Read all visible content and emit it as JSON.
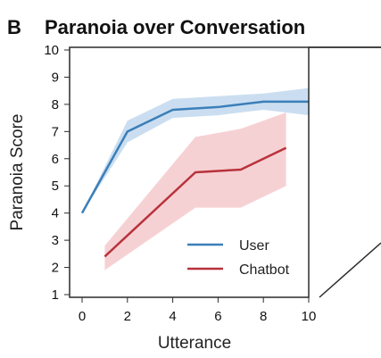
{
  "panel_label": "B",
  "chart_data": {
    "type": "line",
    "title": "Paranoia over Conversation",
    "xlabel": "Utterance",
    "ylabel": "Paranoia Score",
    "xlim": [
      0,
      10
    ],
    "ylim": [
      1,
      10
    ],
    "xticks": [
      0,
      2,
      4,
      6,
      8,
      10
    ],
    "yticks": [
      1,
      2,
      3,
      4,
      5,
      6,
      7,
      8,
      9,
      10
    ],
    "grid": false,
    "legend_position": "bottom-right",
    "series": [
      {
        "name": "User",
        "color": "#3b7fb8",
        "band_color": "#b9d3ec",
        "x": [
          0,
          2,
          4,
          6,
          8,
          10
        ],
        "y": [
          4.0,
          7.0,
          7.8,
          7.9,
          8.1,
          8.1
        ],
        "lower": [
          4.0,
          6.6,
          7.5,
          7.6,
          7.8,
          7.6
        ],
        "upper": [
          4.0,
          7.4,
          8.2,
          8.3,
          8.4,
          8.6
        ]
      },
      {
        "name": "Chatbot",
        "color": "#b8323b",
        "band_color": "#f3c2c6",
        "x": [
          1,
          5,
          7,
          9
        ],
        "y": [
          2.4,
          5.5,
          5.6,
          6.4
        ],
        "lower": [
          1.9,
          4.2,
          4.2,
          5.0
        ],
        "upper": [
          2.8,
          6.8,
          7.1,
          7.7
        ]
      }
    ]
  }
}
